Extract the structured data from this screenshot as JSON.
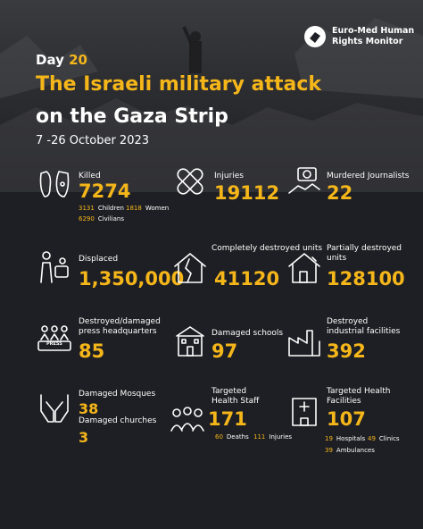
{
  "brand": {
    "line1": "Euro-Med Human",
    "line2": "Rights Monitor"
  },
  "header": {
    "day_label": "Day",
    "day_number": "20",
    "title_line1": "The Israeli military attack",
    "title_line2": "on the Gaza Strip",
    "dates": "7 -26 October 2023"
  },
  "killed": {
    "label": "Killed",
    "value": "7274",
    "children_value": "3131",
    "children_label": "Children",
    "women_value": "1818",
    "women_label": "Women",
    "civilians_value": "6290",
    "civilians_label": "Civilians"
  },
  "injuries": {
    "label": "Injuries",
    "value": "19112"
  },
  "journalists": {
    "label": "Murdered Journalists",
    "value": "22"
  },
  "displaced": {
    "label": "Displaced",
    "value": "1,350,000"
  },
  "destroyed_units": {
    "label": "Completely destroyed units",
    "value": "41120"
  },
  "partial_units": {
    "label": "Partially destroyed units",
    "value": "128100"
  },
  "press": {
    "label": "Destroyed/damaged press headquarters",
    "value": "85",
    "sign": "PRESS"
  },
  "schools": {
    "label": "Damaged schools",
    "value": "97"
  },
  "industrial": {
    "label": "Destroyed industrial facilities",
    "value": "392"
  },
  "mosques": {
    "label": "Damaged Mosques",
    "value": "38",
    "churches_label": "Damaged churches",
    "churches_value": "3"
  },
  "staff": {
    "label": "Targeted Health Staff",
    "value": "171",
    "deaths_value": "60",
    "deaths_label": "Deaths",
    "injuries_value": "111",
    "injuries_label": "Injuries"
  },
  "facilities": {
    "label": "Targeted Health Facilities",
    "value": "107",
    "hospitals_value": "19",
    "hospitals_label": "Hospitals",
    "clinics_value": "49",
    "clinics_label": "Clinics",
    "ambulances_value": "39",
    "ambulances_label": "Ambulances"
  },
  "colors": {
    "accent": "#f5b61a",
    "background": "#1e1f24"
  }
}
